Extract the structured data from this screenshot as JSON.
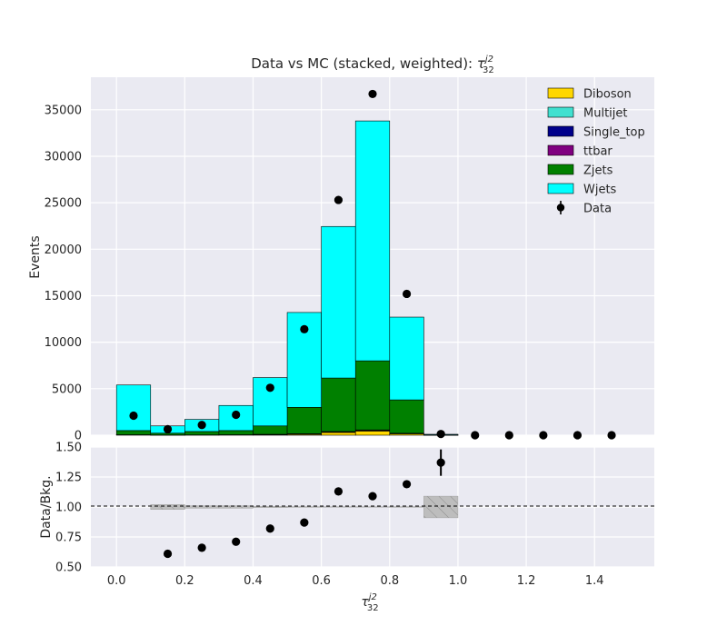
{
  "chart_data": {
    "type": "bar",
    "title": "Data vs MC (stacked, weighted): ",
    "title_symbol": "τ",
    "title_sup": "j2",
    "title_sub": "32",
    "ylabel": "Events",
    "xlabel_symbol": "τ",
    "xlabel_sup": "j2",
    "xlabel_sub": "32",
    "ratio_ylabel": "Data/Bkg.",
    "grid": true,
    "legend_placement": "top-right",
    "bin_edges": [
      0.0,
      0.1,
      0.2,
      0.3,
      0.4,
      0.5,
      0.6,
      0.7,
      0.8,
      0.9,
      1.0,
      1.1,
      1.2,
      1.3,
      1.4,
      1.5
    ],
    "xlim": [
      -0.075,
      1.575
    ],
    "ylim": [
      0,
      38500
    ],
    "ratio_ylim": [
      0.5,
      1.5
    ],
    "x_ticks": [
      "0.0",
      "0.2",
      "0.4",
      "0.6",
      "0.8",
      "1.0",
      "1.2",
      "1.4"
    ],
    "x_tick_values": [
      0.0,
      0.2,
      0.4,
      0.6,
      0.8,
      1.0,
      1.2,
      1.4
    ],
    "y_ticks": [
      "0",
      "5000",
      "10000",
      "15000",
      "20000",
      "25000",
      "30000",
      "35000"
    ],
    "y_tick_values": [
      0,
      5000,
      10000,
      15000,
      20000,
      25000,
      30000,
      35000
    ],
    "ratio_ticks": [
      "0.50",
      "0.75",
      "1.00",
      "1.25",
      "1.50"
    ],
    "ratio_tick_values": [
      0.5,
      0.75,
      1.0,
      1.25,
      1.5
    ],
    "series": [
      {
        "name": "Diboson",
        "color": "#FFD700",
        "values": [
          30,
          10,
          20,
          30,
          60,
          100,
          300,
          450,
          150,
          5,
          0,
          0,
          0,
          0,
          0
        ]
      },
      {
        "name": "Multijet",
        "color": "#40E0D0",
        "values": [
          0,
          0,
          0,
          0,
          0,
          0,
          0,
          0,
          0,
          0,
          0,
          0,
          0,
          0,
          0
        ]
      },
      {
        "name": "Single_top",
        "color": "#00008B",
        "values": [
          10,
          5,
          5,
          10,
          20,
          30,
          50,
          60,
          30,
          2,
          0,
          0,
          0,
          0,
          0
        ]
      },
      {
        "name": "ttbar",
        "color": "#800080",
        "values": [
          10,
          5,
          5,
          10,
          20,
          30,
          50,
          60,
          30,
          2,
          0,
          0,
          0,
          0,
          0
        ]
      },
      {
        "name": "Zjets",
        "color": "#008000",
        "values": [
          450,
          200,
          370,
          450,
          900,
          2840,
          5750,
          7430,
          3590,
          20,
          0,
          0,
          0,
          0,
          0
        ]
      },
      {
        "name": "Wjets",
        "color": "#00FFFF",
        "values": [
          4900,
          780,
          1300,
          2700,
          5200,
          10200,
          16300,
          25800,
          8900,
          70,
          0,
          0,
          0,
          0,
          0
        ]
      }
    ],
    "data": {
      "name": "Data",
      "color": "#000000",
      "x": [
        0.05,
        0.15,
        0.25,
        0.35,
        0.45,
        0.55,
        0.65,
        0.75,
        0.85,
        0.95,
        1.05,
        1.15,
        1.25,
        1.35,
        1.45
      ],
      "values": [
        2100,
        650,
        1100,
        2200,
        5100,
        11400,
        25300,
        36700,
        15200,
        130,
        0,
        0,
        0,
        0,
        0
      ]
    },
    "ratio": {
      "x": [
        0.15,
        0.25,
        0.35,
        0.45,
        0.55,
        0.65,
        0.75,
        0.85,
        0.95
      ],
      "values": [
        0.61,
        0.66,
        0.71,
        0.82,
        0.87,
        1.13,
        1.09,
        1.19,
        1.37
      ],
      "errors": [
        0.01,
        0.01,
        0.01,
        0.01,
        0.005,
        0.005,
        0.005,
        0.005,
        0.11
      ]
    },
    "mc_uncertainty": {
      "x0": [
        0.1,
        0.2,
        0.3,
        0.4,
        0.5,
        0.6,
        0.7,
        0.8,
        0.9
      ],
      "lo": [
        0.98,
        0.99,
        0.99,
        0.995,
        0.997,
        0.998,
        0.998,
        0.997,
        0.91
      ],
      "hi": [
        1.02,
        1.01,
        1.01,
        1.005,
        1.003,
        1.002,
        1.002,
        1.003,
        1.09
      ]
    }
  }
}
